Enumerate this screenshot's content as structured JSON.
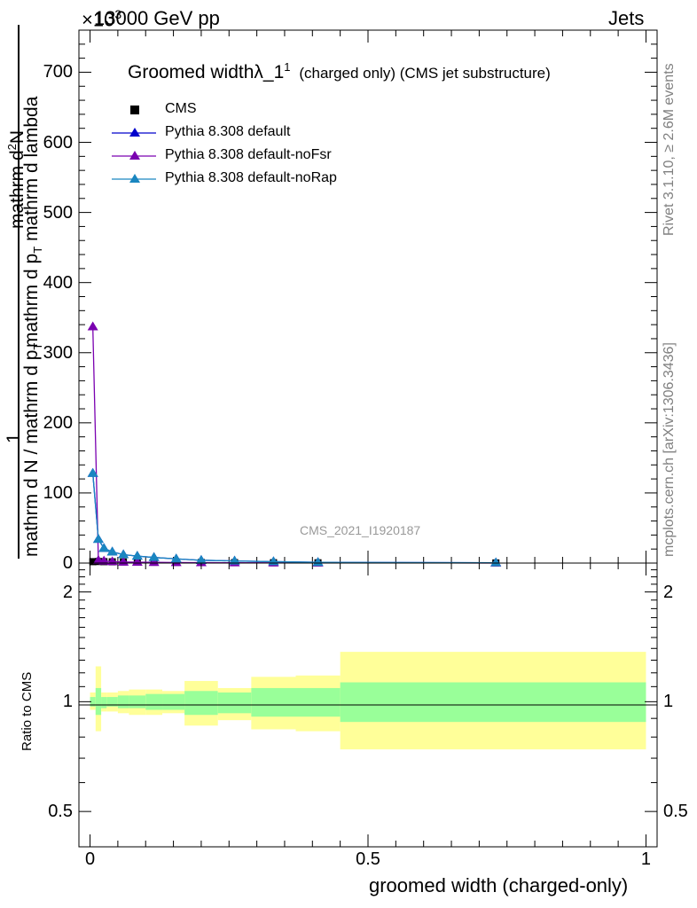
{
  "header": {
    "energy_label": "13000 GeV pp",
    "category_label": "Jets",
    "multiplier": "×10",
    "multiplier_exp": "3"
  },
  "side_labels": {
    "rivet": "Rivet 3.1.10, ≥ 2.6M events",
    "mcplots": "mcplots.cern.ch [arXiv:1306.3436]"
  },
  "plot": {
    "title_main": "Groomed width",
    "title_lambda": "λ_1",
    "title_sup": "1",
    "title_tail": "(charged only) (CMS jet substructure)",
    "watermark": "CMS_2021_I1920187",
    "ylabel_top_num": "mathrm d",
    "ylabel_top_num_sup": "2",
    "ylabel_top_N": "N",
    "ylabel_top_den1": "mathrm d p",
    "ylabel_top_den1_sub": "T",
    "ylabel_top_den2": " mathrm d lambda",
    "ylabel_one": "1",
    "ylabel_bottom_a": "mathrm d N / mathrm d p",
    "ylabel_bottom_a_sub": "T",
    "ratio_ylabel": "Ratio to CMS",
    "xlabel": "groomed width (charged-only)"
  },
  "legend": [
    {
      "label": "CMS",
      "marker": "square",
      "color": "#000000"
    },
    {
      "label": "Pythia 8.308 default",
      "marker": "triangle",
      "color": "#0000cc"
    },
    {
      "label": "Pythia 8.308 default-noFsr",
      "marker": "triangle",
      "color": "#7a00b0"
    },
    {
      "label": "Pythia 8.308 default-noRap",
      "marker": "triangle",
      "color": "#1a86c0"
    }
  ],
  "axes": {
    "main_y_ticks": [
      "0",
      "100",
      "200",
      "300",
      "400",
      "500",
      "600",
      "700"
    ],
    "ratio_y_ticks_left": [
      "0.5",
      "1",
      "2"
    ],
    "ratio_y_ticks_right": [
      "0.5",
      "1",
      "2"
    ],
    "x_ticks": [
      "0",
      "0.5",
      "1"
    ]
  },
  "colors": {
    "band_inner": "#99ff99",
    "band_outer": "#ffff99"
  },
  "chart_data": [
    {
      "type": "line",
      "x_range": [
        -0.02,
        1.02
      ],
      "ylim": [
        0,
        760
      ],
      "y_multiplier": 1000,
      "series": [
        {
          "name": "CMS",
          "x": [
            0.005,
            0.015,
            0.025,
            0.04,
            0.06,
            0.085,
            0.115,
            0.155,
            0.2,
            0.26,
            0.33,
            0.41,
            0.73
          ],
          "y": [
            2.0,
            2.2,
            2.0,
            1.8,
            1.6,
            1.4,
            1.2,
            1.0,
            0.8,
            0.6,
            0.5,
            0.4,
            0.2
          ]
        },
        {
          "name": "Pythia 8.308 default",
          "x": [
            0.005,
            0.015,
            0.025,
            0.04,
            0.06,
            0.085,
            0.115,
            0.155,
            0.2,
            0.26,
            0.33,
            0.41,
            0.73
          ],
          "y": [
            128,
            34,
            21,
            16,
            12,
            10,
            8,
            6,
            4,
            3,
            2,
            1,
            0.5
          ]
        },
        {
          "name": "Pythia 8.308 default-noFsr",
          "x": [
            0.005,
            0.015,
            0.025,
            0.04,
            0.06,
            0.085,
            0.115,
            0.155,
            0.2,
            0.26,
            0.33,
            0.41,
            0.73
          ],
          "y": [
            337,
            4,
            3,
            2,
            1.5,
            1.2,
            1.0,
            0.8,
            0.6,
            0.4,
            0.3,
            0.2,
            0.1
          ]
        },
        {
          "name": "Pythia 8.308 default-noRap",
          "x": [
            0.005,
            0.015,
            0.025,
            0.04,
            0.06,
            0.085,
            0.115,
            0.155,
            0.2,
            0.26,
            0.33,
            0.41,
            0.73
          ],
          "y": [
            128,
            34,
            21,
            16,
            12,
            10,
            8,
            6,
            4,
            3,
            2,
            1,
            0.5
          ]
        }
      ]
    },
    {
      "type": "area",
      "ylabel": "Ratio to CMS",
      "xlabel": "groomed width (charged-only)",
      "x_range": [
        -0.02,
        1.02
      ],
      "y_scale": "log",
      "ylim": [
        0.4,
        2.4
      ],
      "reference": 1.0,
      "bins": [
        {
          "x": [
            0.0,
            0.01
          ],
          "inner": [
            0.97,
            1.03
          ],
          "outer": [
            0.95,
            1.06
          ]
        },
        {
          "x": [
            0.01,
            0.02
          ],
          "inner": [
            0.92,
            1.09
          ],
          "outer": [
            0.83,
            1.25
          ]
        },
        {
          "x": [
            0.02,
            0.03
          ],
          "inner": [
            0.96,
            1.03
          ],
          "outer": [
            0.94,
            1.06
          ]
        },
        {
          "x": [
            0.03,
            0.05
          ],
          "inner": [
            0.97,
            1.03
          ],
          "outer": [
            0.94,
            1.06
          ]
        },
        {
          "x": [
            0.05,
            0.07
          ],
          "inner": [
            0.96,
            1.04
          ],
          "outer": [
            0.93,
            1.07
          ]
        },
        {
          "x": [
            0.07,
            0.1
          ],
          "inner": [
            0.96,
            1.04
          ],
          "outer": [
            0.92,
            1.08
          ]
        },
        {
          "x": [
            0.1,
            0.13
          ],
          "inner": [
            0.95,
            1.05
          ],
          "outer": [
            0.92,
            1.08
          ]
        },
        {
          "x": [
            0.13,
            0.17
          ],
          "inner": [
            0.95,
            1.05
          ],
          "outer": [
            0.93,
            1.07
          ]
        },
        {
          "x": [
            0.17,
            0.23
          ],
          "inner": [
            0.92,
            1.07
          ],
          "outer": [
            0.86,
            1.14
          ]
        },
        {
          "x": [
            0.23,
            0.29
          ],
          "inner": [
            0.93,
            1.06
          ],
          "outer": [
            0.89,
            1.09
          ]
        },
        {
          "x": [
            0.29,
            0.37
          ],
          "inner": [
            0.91,
            1.09
          ],
          "outer": [
            0.84,
            1.17
          ]
        },
        {
          "x": [
            0.37,
            0.45
          ],
          "inner": [
            0.91,
            1.09
          ],
          "outer": [
            0.83,
            1.18
          ]
        },
        {
          "x": [
            0.45,
            1.0
          ],
          "inner": [
            0.88,
            1.13
          ],
          "outer": [
            0.74,
            1.37
          ]
        }
      ]
    }
  ]
}
